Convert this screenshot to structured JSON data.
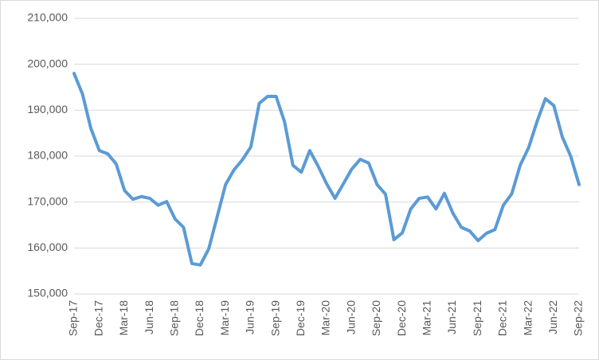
{
  "chart_data": {
    "type": "line",
    "categories": [
      "Sep-17",
      null,
      null,
      "Dec-17",
      null,
      null,
      "Mar-18",
      null,
      null,
      "Jun-18",
      null,
      null,
      "Sep-18",
      null,
      null,
      "Dec-18",
      null,
      null,
      "Mar-19",
      null,
      null,
      "Jun-19",
      null,
      null,
      "Sep-19",
      null,
      null,
      "Dec-19",
      null,
      null,
      "Mar-20",
      null,
      null,
      "Jun-20",
      null,
      null,
      "Sep-20",
      null,
      null,
      "Dec-20",
      null,
      null,
      "Mar-21",
      null,
      null,
      "Jun-21",
      null,
      null,
      "Sep-21",
      null,
      null,
      "Dec-21",
      null,
      null,
      "Mar-22",
      null,
      null,
      "Jun-22",
      null,
      null,
      "Sep-22"
    ],
    "series": [
      {
        "color": "#5b9bd5",
        "values": [
          198000,
          193500,
          186000,
          181200,
          180500,
          178300,
          172500,
          170600,
          171200,
          170800,
          169300,
          170100,
          166300,
          164500,
          156600,
          156300,
          159800,
          166800,
          173800,
          177000,
          179200,
          182000,
          191500,
          193000,
          193000,
          187500,
          178000,
          176500,
          181200,
          177800,
          174000,
          170800,
          174000,
          177200,
          179300,
          178500,
          173800,
          171700,
          161800,
          163300,
          168500,
          170800,
          171100,
          168500,
          171900,
          167600,
          164500,
          163700,
          161600,
          163200,
          164000,
          169300,
          171800,
          178000,
          181800,
          187500,
          192500,
          191000,
          184200,
          180000,
          173800
        ]
      }
    ],
    "ylim": [
      150000,
      210000
    ],
    "yticks": [
      {
        "value": 150000,
        "label": "150,000"
      },
      {
        "value": 160000,
        "label": "160,000"
      },
      {
        "value": 170000,
        "label": "170,000"
      },
      {
        "value": 180000,
        "label": "180,000"
      },
      {
        "value": 190000,
        "label": "190,000"
      },
      {
        "value": 200000,
        "label": "200,000"
      },
      {
        "value": 210000,
        "label": "210,000"
      }
    ],
    "grid": true
  }
}
